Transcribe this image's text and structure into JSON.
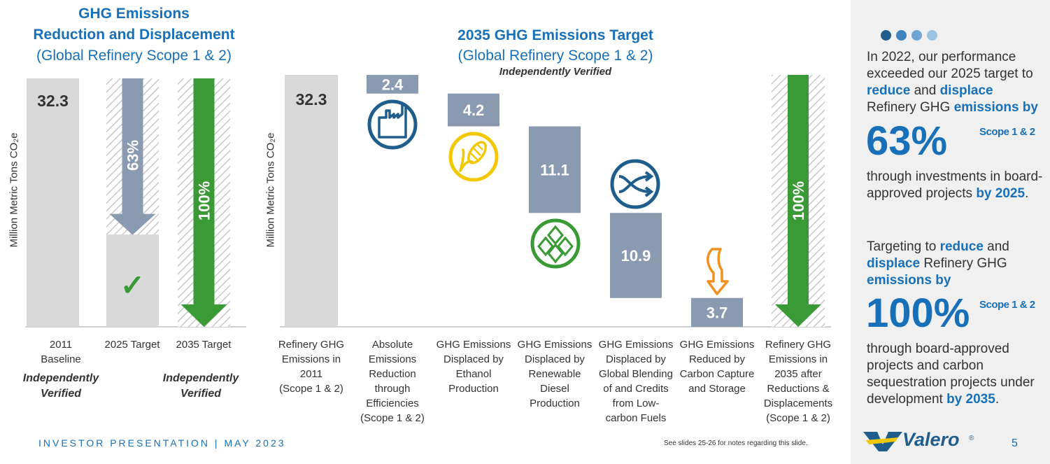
{
  "left_chart": {
    "title_line1": "GHG Emissions",
    "title_line2": "Reduction and Displacement",
    "subtitle": "(Global Refinery Scope 1 & 2)",
    "ylabel": "Million Metric Tons CO₂e",
    "cat_2011_line1": "2011",
    "cat_2011_line2": "Baseline",
    "cat_2025": "2025 Target",
    "cat_2035": "2035 Target",
    "verified_line1": "Independently",
    "verified_line2": "Verified",
    "check_mark": "✓"
  },
  "right_chart": {
    "title": "2035 GHG Emissions Target",
    "subtitle": "(Global Refinery Scope 1 & 2)",
    "verified": "Independently Verified",
    "ylabel": "Million Metric Tons CO₂e"
  },
  "chart_data": [
    {
      "type": "bar",
      "title": "GHG Emissions Reduction and Displacement",
      "subtitle": "(Global Refinery Scope 1 & 2)",
      "ylabel": "Million Metric Tons CO₂e",
      "categories": [
        "2011 Baseline",
        "2025 Target",
        "2035 Target"
      ],
      "values": [
        32.3,
        12.0,
        0
      ],
      "value_labels": [
        "32.3",
        "",
        ""
      ],
      "reduction_arrows": [
        {
          "category": "2025 Target",
          "percent": 63,
          "label": "63%",
          "color": "#8a9ab0"
        },
        {
          "category": "2035 Target",
          "percent": 100,
          "label": "100%",
          "color": "#3a9a35"
        }
      ],
      "ylim": [
        0,
        32.3
      ]
    },
    {
      "type": "bar",
      "subtype": "waterfall",
      "title": "2035 GHG Emissions Target",
      "subtitle": "(Global Refinery Scope 1 & 2)",
      "ylabel": "Million Metric Tons CO₂e",
      "categories": [
        "Refinery GHG Emissions in 2011 (Scope 1 & 2)",
        "Absolute Emissions Reduction through Efficiencies (Scope 1 & 2)",
        "GHG Emissions Displaced by Ethanol Production",
        "GHG Emissions Displaced by Renewable Diesel Production",
        "GHG Emissions Displaced by Global Blending of and Credits from Low-carbon Fuels",
        "GHG Emissions Reduced by Carbon Capture and Storage",
        "Refinery GHG Emissions in 2035 after Reductions & Displacements (Scope 1 & 2)"
      ],
      "category_lines": [
        [
          "Refinery GHG",
          "Emissions in",
          "2011",
          "(Scope 1 & 2)"
        ],
        [
          "Absolute",
          "Emissions",
          "Reduction",
          "through",
          "Efficiencies",
          "(Scope 1 & 2)"
        ],
        [
          "GHG Emissions",
          "Displaced by",
          "Ethanol",
          "Production"
        ],
        [
          "GHG Emissions",
          "Displaced by",
          "Renewable",
          "Diesel",
          "Production"
        ],
        [
          "GHG Emissions",
          "Displaced by",
          "Global Blending",
          "of and Credits",
          "from Low-",
          "carbon Fuels"
        ],
        [
          "GHG Emissions",
          "Reduced by",
          "Carbon Capture",
          "and Storage"
        ],
        [
          "Refinery GHG",
          "Emissions in",
          "2035 after",
          "Reductions &",
          "Displacements",
          "(Scope 1 & 2)"
        ]
      ],
      "values": [
        32.3,
        2.4,
        4.2,
        11.1,
        10.9,
        3.7,
        0
      ],
      "value_labels": [
        "32.3",
        "2.4",
        "4.2",
        "11.1",
        "10.9",
        "3.7",
        ""
      ],
      "icons": [
        "",
        "factory-icon",
        "corn-icon",
        "renewable-diesel-icon",
        "blending-shuffle-icon",
        "carbon-capture-arrow-icon",
        ""
      ],
      "final_arrow": {
        "percent": 100,
        "label": "100%",
        "color": "#3a9a35"
      },
      "ylim": [
        0,
        32.3
      ]
    }
  ],
  "sidebar": {
    "p1_a": "In 2022, our performance exceeded our 2025 target to ",
    "p1_reduce": "reduce",
    "p1_and": " and ",
    "p1_displace": "displace",
    "p1_b": " Refinery GHG ",
    "p1_emissions": "emissions by",
    "big1": "63%",
    "scope1": "Scope 1 & 2",
    "p2_a": "through investments in board-approved projects ",
    "p2_by": "by 2025",
    "p2_end": ".",
    "p3_a": "Targeting to ",
    "p3_reduce": "reduce",
    "p3_and": " and ",
    "p3_displace": "displace",
    "p3_b": " Refinery GHG ",
    "p3_emissions": "emissions by",
    "big2": "100%",
    "scope2": "Scope 1 & 2",
    "p4_a": "through board-approved projects and carbon sequestration projects under development ",
    "p4_by": "by 2035",
    "p4_end": ".",
    "logo_text": "Valero",
    "logo_reg": "®",
    "page_number": "5"
  },
  "footer": {
    "presentation": "INVESTOR PRESENTATION | MAY 2023",
    "note": "See slides 25-26 for notes regarding this slide."
  },
  "colors": {
    "blue": "#1770b8",
    "bar_gray": "#d9d9d9",
    "step_slate": "#8a9ab0",
    "green": "#3a9a35",
    "yellow": "#f2c800",
    "orange": "#f0901e",
    "navy": "#1f5e8c"
  }
}
